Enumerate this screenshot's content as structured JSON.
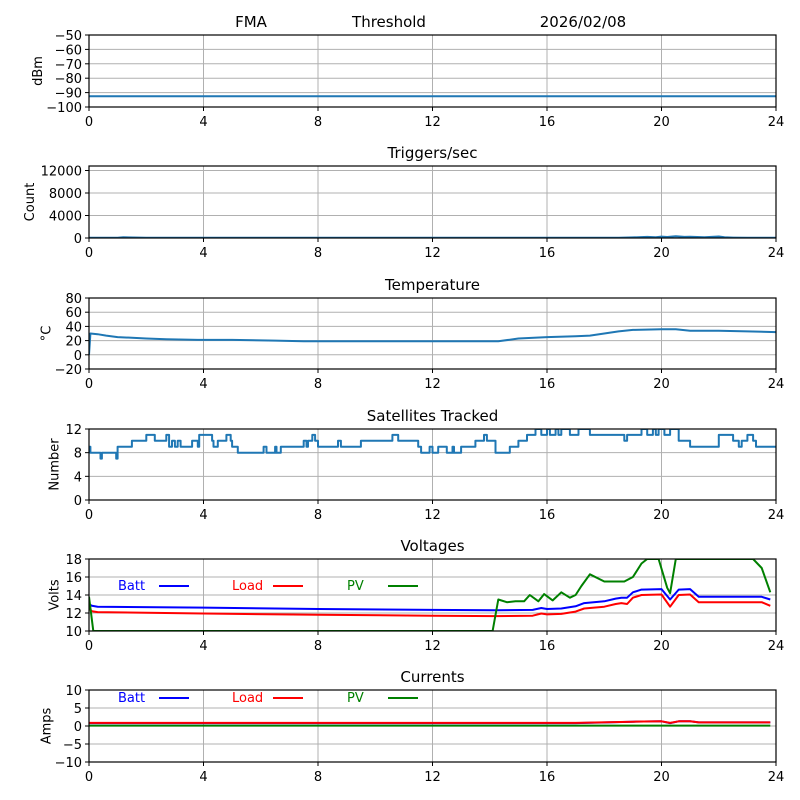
{
  "header": {
    "items": [
      "FMA",
      "Threshold",
      "2026/02/08"
    ]
  },
  "chart_data": [
    {
      "id": "fma",
      "type": "line",
      "title": "",
      "xlabel": "",
      "ylabel": "dBm",
      "xlim": [
        0,
        24
      ],
      "ylim": [
        -100,
        -50
      ],
      "xticks": [
        0,
        4,
        8,
        12,
        16,
        20,
        24
      ],
      "yticks": [
        -100,
        -90,
        -80,
        -70,
        -60,
        -50
      ],
      "ytick_labels": [
        "−100",
        "−90",
        "−80",
        "−70",
        "−60",
        "−50"
      ],
      "grid": true,
      "series": [
        {
          "name": "Threshold",
          "color": "#1f77b4",
          "x": [
            0,
            24
          ],
          "y": [
            -92.5,
            -92.5
          ]
        }
      ]
    },
    {
      "id": "triggers",
      "type": "line",
      "title": "Triggers/sec",
      "xlabel": "",
      "ylabel": "Count",
      "xlim": [
        0,
        24
      ],
      "ylim": [
        0,
        12800
      ],
      "xticks": [
        0,
        4,
        8,
        12,
        16,
        20,
        24
      ],
      "yticks": [
        0,
        4000,
        8000,
        12000
      ],
      "ytick_labels": [
        "0",
        "4000",
        "8000",
        "12000"
      ],
      "grid": true,
      "series": [
        {
          "name": "Triggers",
          "color": "#1f77b4",
          "x": [
            0,
            1,
            1.2,
            2,
            18,
            18.5,
            19,
            19.5,
            19.8,
            20,
            20.2,
            20.5,
            20.8,
            21,
            21.5,
            22,
            22.2,
            22.5,
            23,
            24
          ],
          "y": [
            30,
            30,
            120,
            30,
            30,
            60,
            100,
            200,
            150,
            250,
            180,
            300,
            200,
            220,
            150,
            260,
            120,
            80,
            40,
            30
          ]
        }
      ]
    },
    {
      "id": "temperature",
      "type": "line",
      "title": "Temperature",
      "xlabel": "",
      "ylabel": "°C",
      "xlim": [
        0,
        24
      ],
      "ylim": [
        -20,
        80
      ],
      "xticks": [
        0,
        4,
        8,
        12,
        16,
        20,
        24
      ],
      "yticks": [
        -20,
        0,
        20,
        40,
        60,
        80
      ],
      "ytick_labels": [
        "−20",
        "0",
        "20",
        "40",
        "60",
        "80"
      ],
      "grid": true,
      "series": [
        {
          "name": "Temperature",
          "color": "#1f77b4",
          "x": [
            0,
            0.05,
            0.3,
            0.6,
            1.0,
            1.5,
            2.0,
            2.7,
            3.8,
            5.0,
            6.5,
            7.5,
            9.0,
            11.0,
            13.0,
            14.3,
            15.0,
            16.0,
            17.0,
            17.5,
            18.0,
            18.5,
            19.0,
            20.0,
            20.5,
            21.0,
            22.0,
            23.0,
            24.0
          ],
          "y": [
            0,
            30,
            29,
            27,
            25,
            24,
            23,
            22,
            21,
            21,
            20,
            19,
            19,
            19,
            19,
            19,
            23,
            25,
            26,
            27,
            30,
            33,
            35,
            36,
            36,
            34,
            34,
            33,
            32
          ]
        }
      ]
    },
    {
      "id": "satellites",
      "type": "line",
      "title": "Satellites Tracked",
      "xlabel": "",
      "ylabel": "Number",
      "xlim": [
        0,
        24
      ],
      "ylim": [
        0,
        12
      ],
      "xticks": [
        0,
        4,
        8,
        12,
        16,
        20,
        24
      ],
      "yticks": [
        0,
        4,
        8,
        12
      ],
      "ytick_labels": [
        "0",
        "4",
        "8",
        "12"
      ],
      "grid": true,
      "series": [
        {
          "name": "Satellites",
          "color": "#1f77b4",
          "step": true,
          "x": [
            0,
            0.05,
            0.4,
            0.45,
            0.55,
            0.95,
            1.0,
            1.5,
            2.0,
            2.3,
            2.7,
            2.8,
            2.9,
            3.0,
            3.1,
            3.2,
            3.6,
            3.8,
            3.85,
            3.95,
            4.3,
            4.35,
            4.5,
            4.8,
            4.95,
            5.0,
            5.05,
            5.2,
            5.3,
            6.1,
            6.2,
            6.5,
            6.55,
            6.7,
            7.5,
            7.6,
            7.65,
            7.8,
            7.9,
            8.0,
            8.5,
            8.7,
            8.8,
            9.0,
            9.5,
            9.7,
            10.6,
            10.8,
            11.0,
            11.5,
            11.6,
            11.9,
            12.0,
            12.2,
            12.5,
            12.7,
            12.75,
            13.0,
            13.5,
            13.8,
            13.9,
            14.2,
            14.5,
            14.7,
            15.0,
            15.3,
            15.6,
            15.8,
            16.0,
            16.1,
            16.3,
            16.4,
            16.5,
            16.8,
            17.1,
            17.5,
            18.2,
            18.7,
            18.8,
            19.3,
            19.5,
            19.7,
            19.8,
            19.9,
            20.0,
            20.1,
            20.3,
            20.6,
            21.0,
            21.7,
            22.0,
            22.5,
            22.7,
            22.8,
            23.0,
            23.2,
            23.3,
            24.0
          ],
          "y": [
            9,
            8,
            7,
            8,
            8,
            7,
            9,
            10,
            11,
            10,
            11,
            9,
            10,
            9,
            10,
            9,
            10,
            9,
            11,
            11,
            10,
            9,
            10,
            11,
            10,
            9,
            9,
            8,
            8,
            9,
            8,
            9,
            8,
            9,
            10,
            9,
            10,
            11,
            10,
            9,
            9,
            10,
            9,
            9,
            10,
            10,
            11,
            10,
            10,
            9,
            8,
            9,
            8,
            9,
            8,
            9,
            8,
            9,
            10,
            11,
            10,
            8,
            8,
            9,
            10,
            11,
            12,
            11,
            12,
            11,
            12,
            11,
            12,
            11,
            12,
            11,
            11,
            10,
            11,
            12,
            11,
            12,
            11,
            12,
            12,
            11,
            12,
            10,
            9,
            9,
            11,
            10,
            9,
            10,
            11,
            10,
            9,
            9
          ]
        }
      ]
    },
    {
      "id": "voltages",
      "type": "line",
      "title": "Voltages",
      "xlabel": "",
      "ylabel": "Volts",
      "xlim": [
        0,
        24
      ],
      "ylim": [
        10,
        18
      ],
      "xticks": [
        0,
        4,
        8,
        12,
        16,
        20,
        24
      ],
      "yticks": [
        10,
        12,
        14,
        16,
        18
      ],
      "ytick_labels": [
        "10",
        "12",
        "14",
        "16",
        "18"
      ],
      "grid": true,
      "legend": [
        "Batt",
        "Load",
        "PV"
      ],
      "series": [
        {
          "name": "Batt",
          "color": "#0000ff",
          "x": [
            0,
            0.1,
            0.3,
            4,
            8,
            12,
            14.2,
            15.5,
            15.8,
            16.0,
            16.5,
            17.0,
            17.3,
            18.0,
            18.4,
            18.6,
            18.8,
            19.0,
            19.3,
            20.0,
            20.3,
            20.6,
            21.0,
            21.3,
            23.5,
            23.8
          ],
          "y": [
            13.0,
            12.8,
            12.7,
            12.6,
            12.45,
            12.35,
            12.3,
            12.35,
            12.55,
            12.45,
            12.5,
            12.75,
            13.1,
            13.3,
            13.6,
            13.7,
            13.7,
            14.3,
            14.6,
            14.65,
            13.5,
            14.6,
            14.65,
            13.8,
            13.8,
            13.5
          ]
        },
        {
          "name": "Load",
          "color": "#ff0000",
          "x": [
            0,
            0.1,
            0.3,
            4,
            8,
            12,
            14.2,
            15.5,
            15.8,
            16.0,
            16.5,
            17.0,
            17.3,
            18.0,
            18.4,
            18.6,
            18.8,
            19.0,
            19.3,
            20.0,
            20.3,
            20.6,
            21.0,
            21.3,
            23.5,
            23.8
          ],
          "y": [
            12.5,
            12.2,
            12.1,
            11.95,
            11.8,
            11.7,
            11.65,
            11.7,
            11.95,
            11.85,
            11.9,
            12.15,
            12.5,
            12.7,
            13.0,
            13.1,
            13.0,
            13.7,
            14.0,
            14.05,
            12.7,
            14.0,
            14.05,
            13.2,
            13.2,
            12.8
          ]
        },
        {
          "name": "PV",
          "color": "#008000",
          "x": [
            0,
            0.15,
            14.1,
            14.3,
            14.6,
            14.9,
            15.2,
            15.4,
            15.7,
            15.9,
            16.2,
            16.5,
            16.8,
            17.0,
            17.2,
            17.5,
            18.0,
            18.3,
            18.7,
            19.0,
            19.3,
            19.5,
            19.9,
            20.2,
            20.3,
            20.5,
            20.8,
            23.2,
            23.5,
            23.8
          ],
          "y": [
            13.8,
            10.0,
            10.0,
            13.5,
            13.2,
            13.3,
            13.3,
            14.0,
            13.3,
            14.1,
            13.4,
            14.3,
            13.7,
            14.0,
            15.0,
            16.3,
            15.5,
            15.5,
            15.5,
            16.0,
            17.5,
            18.0,
            18.0,
            14.8,
            14.2,
            18.0,
            18.0,
            18.0,
            17.0,
            14.3
          ]
        }
      ]
    },
    {
      "id": "currents",
      "type": "line",
      "title": "Currents",
      "xlabel": "",
      "ylabel": "Amps",
      "xlim": [
        0,
        24
      ],
      "ylim": [
        -10,
        10
      ],
      "xticks": [
        0,
        4,
        8,
        12,
        16,
        20,
        24
      ],
      "yticks": [
        -10,
        -5,
        0,
        5,
        10
      ],
      "ytick_labels": [
        "−10",
        "−5",
        "0",
        "5",
        "10"
      ],
      "grid": true,
      "legend": [
        "Batt",
        "Load",
        "PV"
      ],
      "series": [
        {
          "name": "Batt",
          "color": "#0000ff",
          "x": [
            0,
            17,
            19,
            20,
            20.3,
            20.6,
            21.0,
            21.3,
            23.8
          ],
          "y": [
            0.8,
            0.8,
            1.2,
            1.3,
            0.8,
            1.3,
            1.3,
            1.0,
            1.0
          ]
        },
        {
          "name": "Load",
          "color": "#ff0000",
          "x": [
            0,
            17,
            19,
            20,
            20.3,
            20.6,
            21.0,
            21.3,
            23.8
          ],
          "y": [
            0.85,
            0.85,
            1.2,
            1.3,
            0.85,
            1.3,
            1.3,
            1.0,
            1.0
          ]
        },
        {
          "name": "PV",
          "color": "#008000",
          "x": [
            0,
            23.8
          ],
          "y": [
            0.1,
            0.1
          ]
        }
      ]
    }
  ]
}
